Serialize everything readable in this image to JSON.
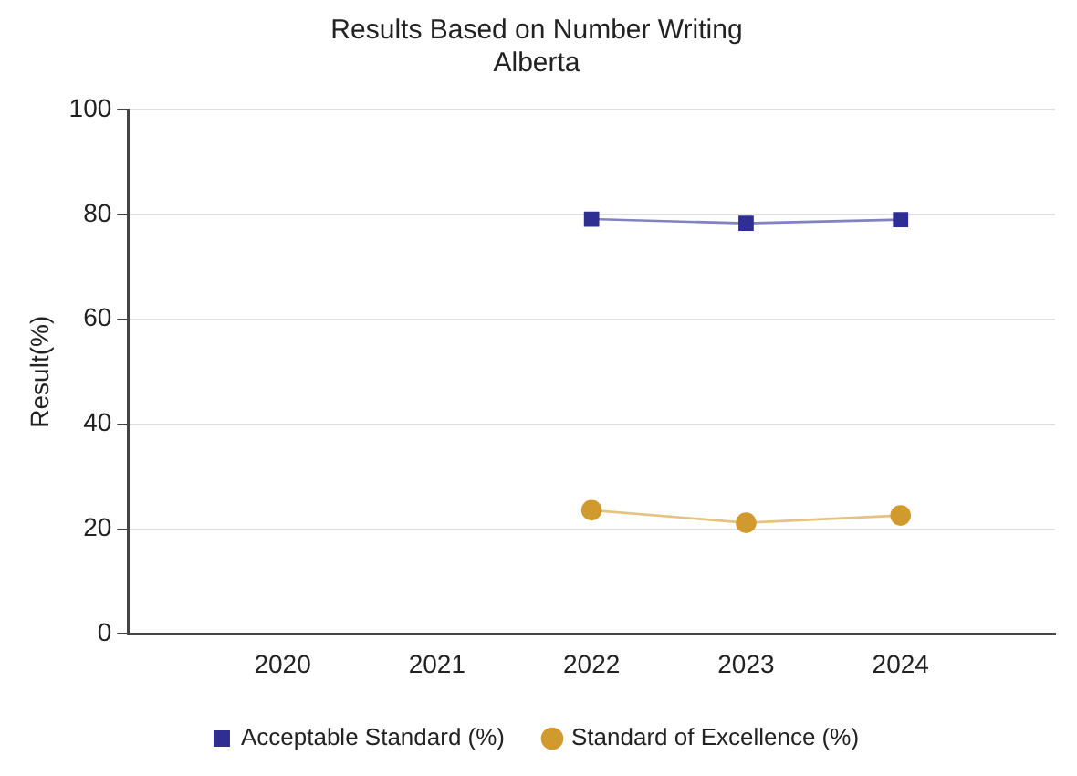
{
  "chart_data": {
    "type": "line",
    "title": "Results Based on Number Writing",
    "subtitle": "Alberta",
    "ylabel": "Result(%)",
    "categories": [
      null,
      "2020",
      "2021",
      "2022",
      "2023",
      "2024",
      null
    ],
    "series": [
      {
        "name": "Acceptable Standard (%)",
        "color": "#2e2e93",
        "marker": "square",
        "values": [
          null,
          null,
          null,
          79.1,
          78.3,
          79.0,
          null
        ]
      },
      {
        "name": "Standard of Excellence (%)",
        "color": "#d19a2e",
        "marker": "circle",
        "values": [
          null,
          null,
          null,
          23.6,
          21.2,
          22.6,
          null
        ]
      }
    ],
    "ylim": [
      0,
      100
    ],
    "yticks": [
      0,
      20,
      40,
      60,
      80,
      100
    ],
    "grid": "y",
    "legend": "bottom",
    "line_style": "solid"
  }
}
